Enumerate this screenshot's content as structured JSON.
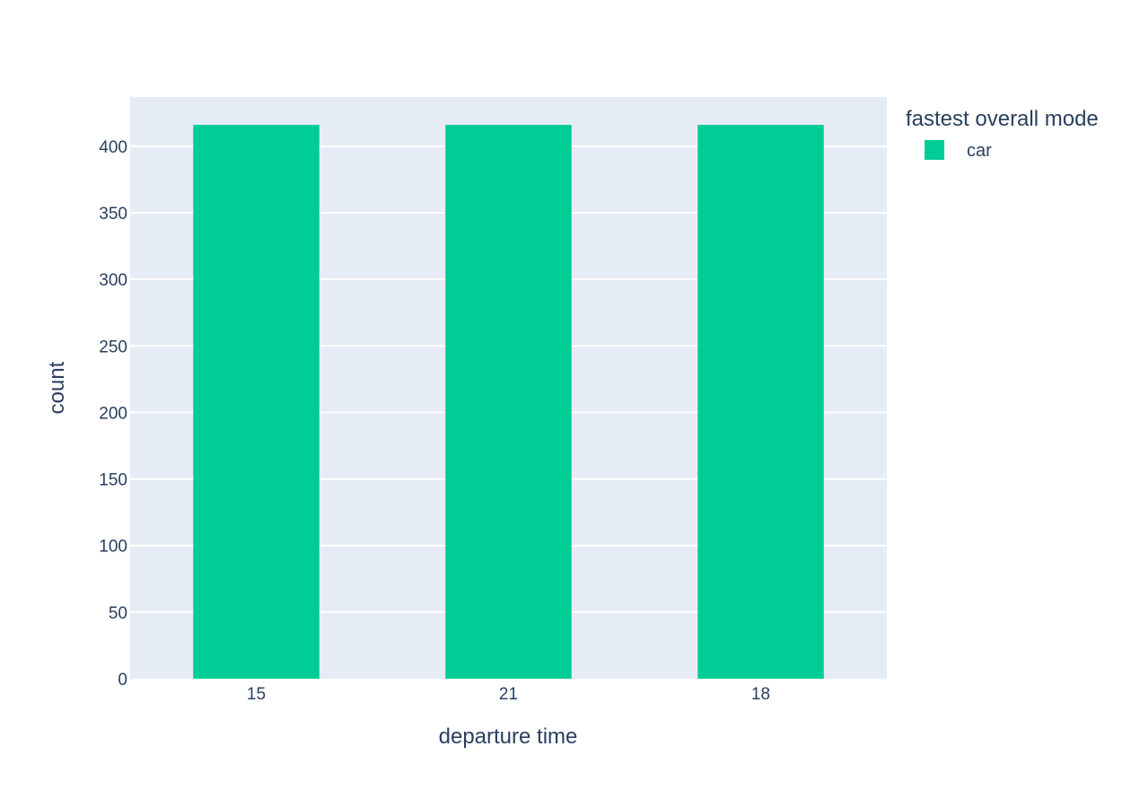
{
  "chart_data": {
    "type": "bar",
    "categories": [
      "15",
      "21",
      "18"
    ],
    "series": [
      {
        "name": "car",
        "values": [
          416,
          416,
          416
        ],
        "color": "#00cc96"
      }
    ],
    "xlabel": "departure time",
    "ylabel": "count",
    "ylim": [
      0,
      437
    ],
    "yticks": [
      0,
      50,
      100,
      150,
      200,
      250,
      300,
      350,
      400
    ],
    "grid": true,
    "legend": {
      "title": "fastest overall mode",
      "placement": "top-right"
    },
    "colors": {
      "plot_background": "#e5ecf6",
      "gridline": "#ffffff",
      "text": "#2a3f5f"
    }
  }
}
